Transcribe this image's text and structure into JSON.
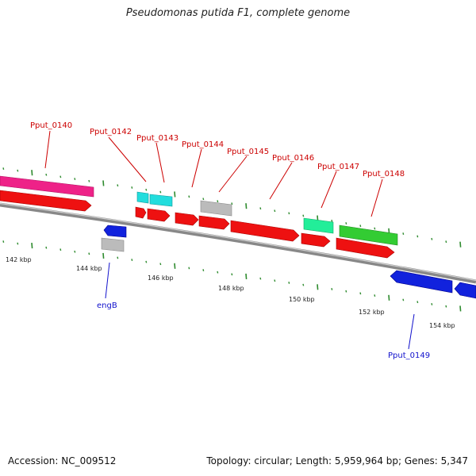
{
  "header": {
    "title": "Pseudomonas putida F1, complete genome"
  },
  "footer": {
    "accession": "Accession: NC_009512",
    "summary": "Topology: circular; Length: 5,959,964 bp; Genes: 5,347"
  },
  "colors": {
    "forward_cds": "#ee1111",
    "reverse_cds": "#1122dd",
    "label_forward": "#cc0000",
    "label_reverse": "#1111cc",
    "tick": "#2e8b2e",
    "backbone": "#777777",
    "pink_feature": "#ee2288",
    "cyan_feature": "#22dddd",
    "teal_feature": "#22ee99",
    "green_feature": "#33cc33",
    "gray_feature": "#bbbbbb"
  },
  "scale_labels": [
    "142 kbp",
    "144 kbp",
    "146 kbp",
    "148 kbp",
    "150 kbp",
    "152 kbp",
    "154 kbp"
  ],
  "gene_labels": {
    "Pput_0140": "Pput_0140",
    "Pput_0142": "Pput_0142",
    "Pput_0143": "Pput_0143",
    "Pput_0144": "Pput_0144",
    "Pput_0145": "Pput_0145",
    "Pput_0146": "Pput_0146",
    "Pput_0147": "Pput_0147",
    "Pput_0148": "Pput_0148",
    "engB": "engB",
    "Pput_0149": "Pput_0149"
  }
}
